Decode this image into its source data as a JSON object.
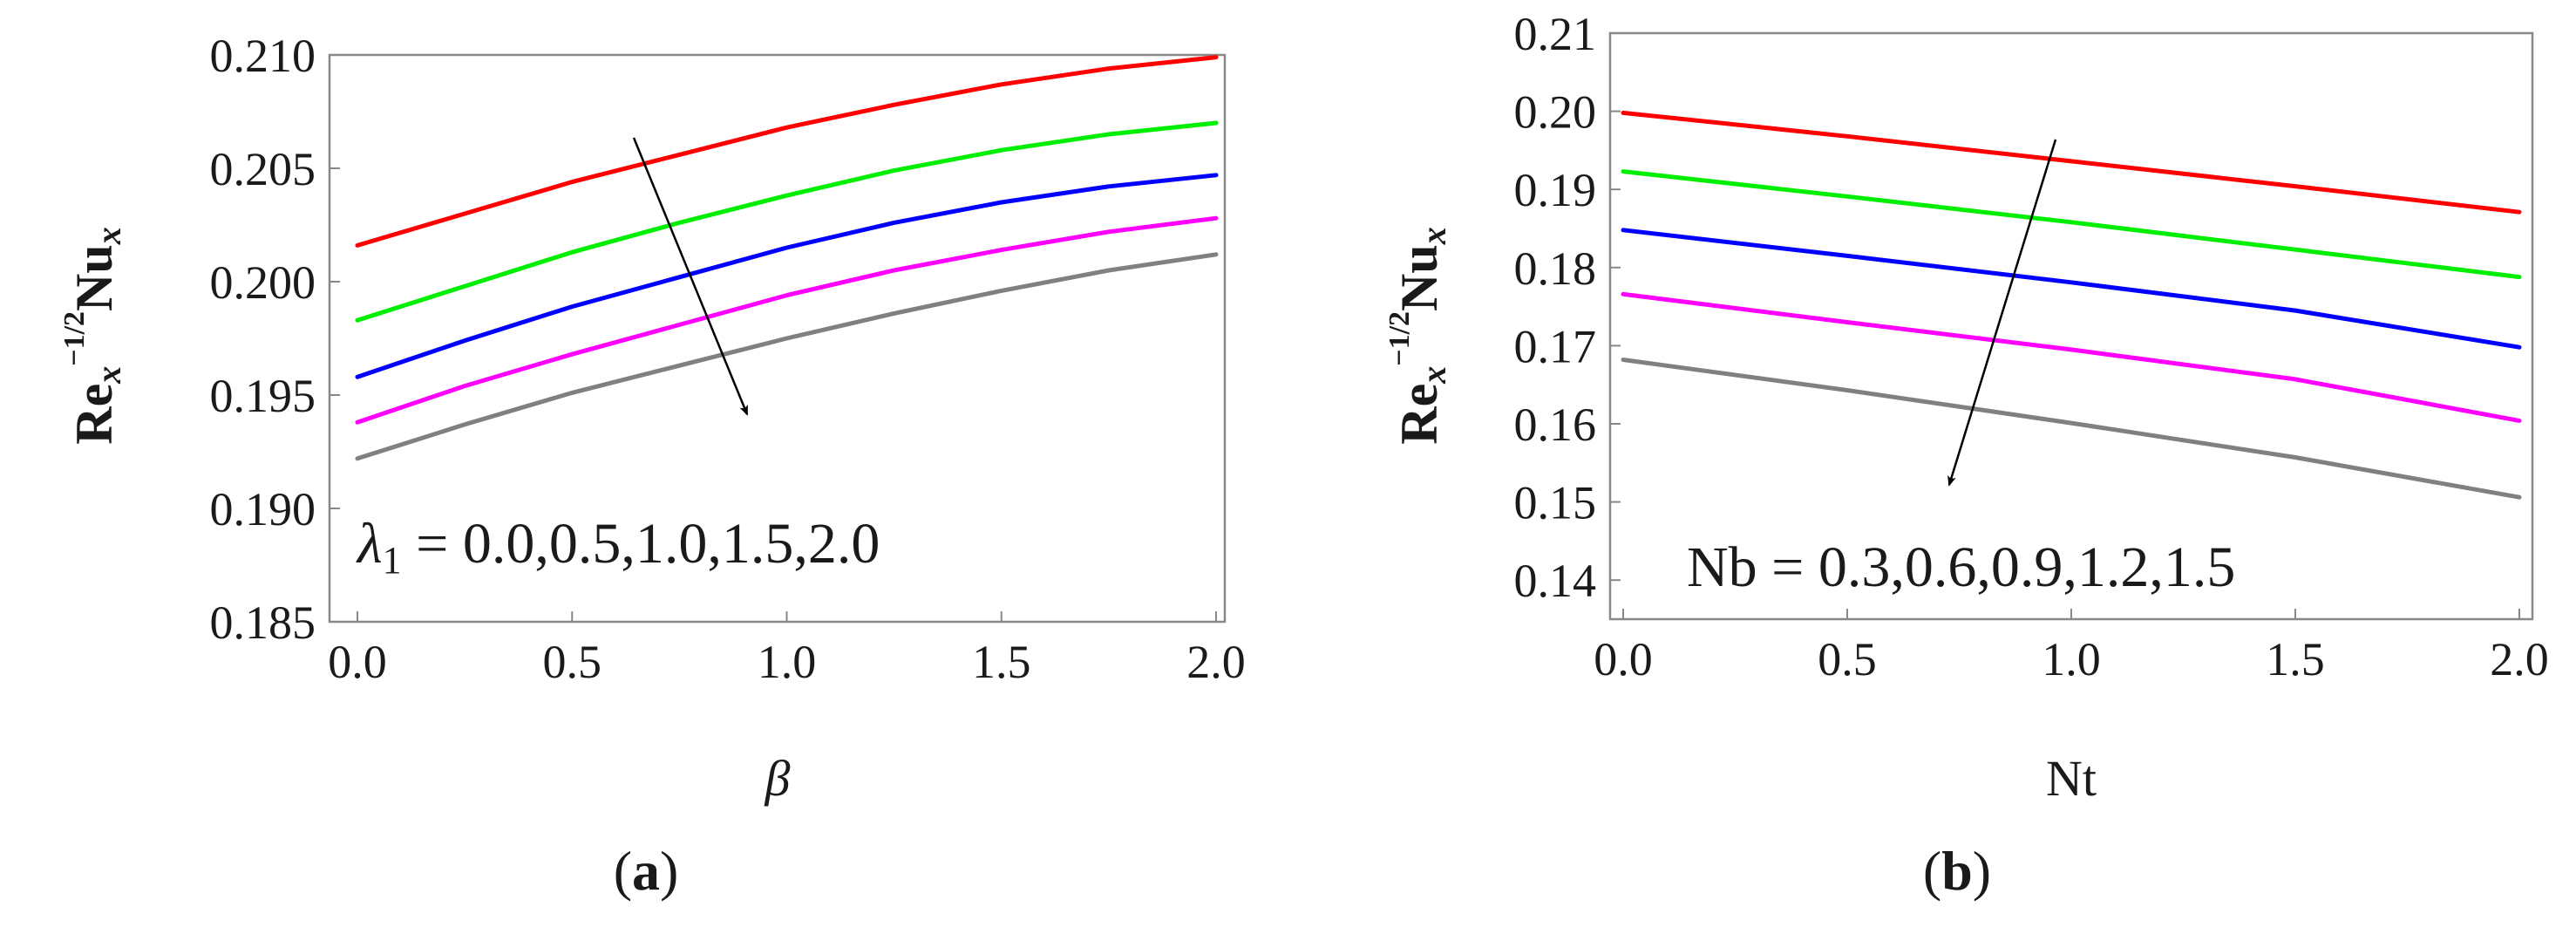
{
  "chart_data": [
    {
      "type": "line",
      "panel_label": "a",
      "xlabel": "β",
      "ylabel": {
        "base": "Re",
        "sub": "x",
        "sup": "−1/2",
        "rest": "Nu",
        "rest_sub": "x"
      },
      "xlim": [
        0.0,
        2.0
      ],
      "ylim": [
        0.185,
        0.21
      ],
      "xticks": [
        "0.0",
        "0.5",
        "1.0",
        "1.5",
        "2.0"
      ],
      "yticks": [
        "0.185",
        "0.190",
        "0.195",
        "0.200",
        "0.205",
        "0.210"
      ],
      "annotation": {
        "symbol": "λ",
        "sub": "1",
        "text": " = 0.0,0.5,1.0,1.5,2.0"
      },
      "x": [
        0.0,
        0.25,
        0.5,
        0.75,
        1.0,
        1.25,
        1.5,
        1.75,
        2.0
      ],
      "series": [
        {
          "color": "#ff0000",
          "values": [
            0.2016,
            0.203,
            0.2044,
            0.2056,
            0.2068,
            0.2078,
            0.2087,
            0.2094,
            0.2099
          ]
        },
        {
          "color": "#00ee00",
          "values": [
            0.1983,
            0.1998,
            0.2013,
            0.2026,
            0.2038,
            0.2049,
            0.2058,
            0.2065,
            0.207
          ]
        },
        {
          "color": "#0000ff",
          "values": [
            0.1958,
            0.1974,
            0.1989,
            0.2002,
            0.2015,
            0.2026,
            0.2035,
            0.2042,
            0.2047
          ]
        },
        {
          "color": "#ff00ff",
          "values": [
            0.1938,
            0.1954,
            0.1968,
            0.1981,
            0.1994,
            0.2005,
            0.2014,
            0.2022,
            0.2028
          ]
        },
        {
          "color": "#808080",
          "values": [
            0.1922,
            0.1937,
            0.1951,
            0.1963,
            0.1975,
            0.1986,
            0.1996,
            0.2005,
            0.2012
          ]
        }
      ]
    },
    {
      "type": "line",
      "panel_label": "b",
      "xlabel": "Nt",
      "ylabel": {
        "base": "Re",
        "sub": "x",
        "sup": "−1/2",
        "rest": "Nu",
        "rest_sub": "x"
      },
      "xlim": [
        0.0,
        2.0
      ],
      "ylim": [
        0.135,
        0.21
      ],
      "xticks": [
        "0.0",
        "0.5",
        "1.0",
        "1.5",
        "2.0"
      ],
      "yticks": [
        "0.14",
        "0.15",
        "0.16",
        "0.17",
        "0.18",
        "0.19",
        "0.20",
        "0.21"
      ],
      "annotation": {
        "symbol": "",
        "sub": "",
        "text": "Nb = 0.3,0.6,0.9,1.2,1.5"
      },
      "x": [
        0.0,
        0.5,
        1.0,
        1.5,
        2.0
      ],
      "series": [
        {
          "color": "#ff0000",
          "values": [
            0.1998,
            0.1968,
            0.1936,
            0.1904,
            0.1871
          ]
        },
        {
          "color": "#00ee00",
          "values": [
            0.1923,
            0.1891,
            0.1858,
            0.1823,
            0.1788
          ]
        },
        {
          "color": "#0000ff",
          "values": [
            0.1848,
            0.1815,
            0.1781,
            0.1745,
            0.1698
          ]
        },
        {
          "color": "#ff00ff",
          "values": [
            0.1766,
            0.173,
            0.1695,
            0.1657,
            0.1604
          ]
        },
        {
          "color": "#808080",
          "values": [
            0.1682,
            0.1643,
            0.1601,
            0.1557,
            0.1506
          ]
        }
      ]
    }
  ]
}
